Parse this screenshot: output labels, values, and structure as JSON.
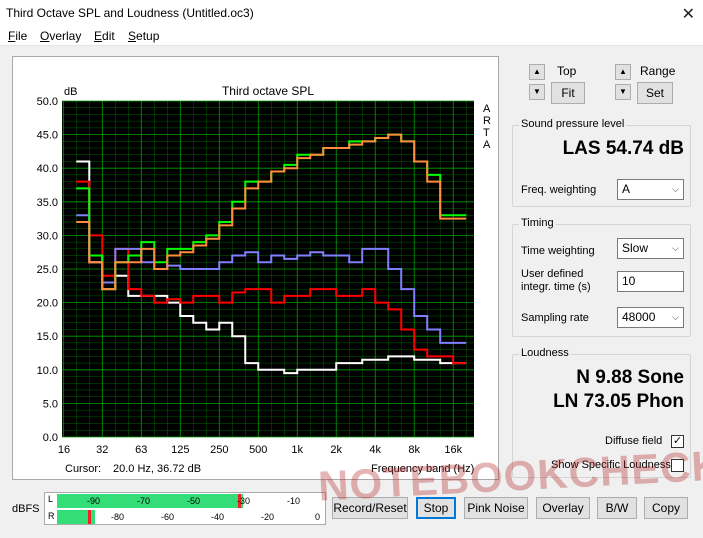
{
  "window": {
    "title": "Third Octave SPL and Loudness (Untitled.oc3)",
    "close_glyph": "✕"
  },
  "menu": [
    {
      "label": "File",
      "u": "F",
      "rest": "ile"
    },
    {
      "label": "Overlay",
      "u": "O",
      "rest": "verlay"
    },
    {
      "label": "Edit",
      "u": "E",
      "rest": "dit"
    },
    {
      "label": "Setup",
      "u": "S",
      "rest": "etup"
    }
  ],
  "graph": {
    "title": "Third octave SPL",
    "y_unit": "dB",
    "arta_letters": [
      "A",
      "R",
      "T",
      "A"
    ],
    "cursor_label": "Cursor:",
    "cursor_value": "20.0 Hz, 36.72 dB",
    "x_axis_label": "Frequency band (Hz)",
    "y_ticks": [
      "50.0",
      "45.0",
      "40.0",
      "35.0",
      "30.0",
      "25.0",
      "20.0",
      "15.0",
      "10.0",
      "5.0",
      "0.0"
    ],
    "x_ticks": [
      "16",
      "32",
      "63",
      "125",
      "250",
      "500",
      "1k",
      "2k",
      "4k",
      "8k",
      "16k"
    ]
  },
  "chart_data": {
    "type": "line",
    "title": "Third octave SPL",
    "xlabel": "Frequency band (Hz)",
    "ylabel": "dB",
    "ylim": [
      0,
      50
    ],
    "x": [
      "20",
      "25",
      "31.5",
      "40",
      "50",
      "63",
      "80",
      "100",
      "125",
      "160",
      "200",
      "250",
      "315",
      "400",
      "500",
      "630",
      "800",
      "1k",
      "1.25k",
      "1.6k",
      "2k",
      "2.5k",
      "3.15k",
      "4k",
      "5k",
      "6.3k",
      "8k",
      "10k",
      "12.5k",
      "16k"
    ],
    "series": [
      {
        "color": "#ffffff",
        "values": [
          41,
          26,
          22,
          24,
          21,
          21,
          21,
          20,
          18,
          17,
          16,
          17,
          15,
          11,
          10,
          10,
          9.5,
          10,
          10,
          10,
          11,
          11,
          11.5,
          11.5,
          12,
          12,
          11.5,
          11.5,
          11,
          11
        ]
      },
      {
        "color": "#ff0000",
        "values": [
          38,
          30,
          24,
          28,
          22,
          21,
          20,
          20.5,
          20,
          21,
          21,
          20,
          21.5,
          22,
          22,
          20,
          21,
          21,
          22,
          22,
          21,
          21,
          22,
          20,
          19,
          16,
          13,
          12,
          12,
          11
        ]
      },
      {
        "color": "#8080ff",
        "values": [
          33,
          27,
          23,
          28,
          28,
          26,
          25,
          25.5,
          25,
          25,
          25,
          26,
          27,
          27.5,
          26,
          27,
          26.5,
          27,
          27.5,
          27,
          27,
          26,
          28,
          28,
          25,
          22,
          18,
          16,
          14,
          14
        ]
      },
      {
        "color": "#00ff00",
        "values": [
          37,
          27,
          22,
          26,
          27,
          29,
          26,
          28,
          28,
          29,
          30,
          32,
          35,
          38,
          38,
          39.5,
          40.5,
          42,
          42,
          43,
          43,
          44,
          44,
          44.5,
          45,
          44,
          41,
          39,
          33,
          33
        ]
      },
      {
        "color": "#ff8c3c",
        "values": [
          32,
          26,
          22,
          26,
          26,
          28,
          25,
          27,
          27.5,
          28.5,
          29.5,
          31.5,
          34,
          37,
          38,
          39.5,
          40,
          41.5,
          42,
          43,
          43,
          43.5,
          44,
          44.5,
          45,
          44,
          41,
          38,
          32.5,
          32.5
        ]
      }
    ]
  },
  "controls": {
    "top_label": "Top",
    "range_label": "Range",
    "fit_label": "Fit",
    "set_label": "Set",
    "up_glyph": "▲",
    "down_glyph": "▼"
  },
  "spl": {
    "group_title": "Sound pressure level",
    "value": "LAS 54.74 dB",
    "freq_weighting_label": "Freq. weighting",
    "freq_weighting_value": "A"
  },
  "timing": {
    "group_title": "Timing",
    "time_weighting_label": "Time weighting",
    "time_weighting_value": "Slow",
    "user_defined_label_1": "User defined",
    "user_defined_label_2": "integr. time (s)",
    "user_defined_value": "10",
    "sampling_rate_label": "Sampling rate",
    "sampling_rate_value": "48000"
  },
  "loudness": {
    "group_title": "Loudness",
    "n_value": "N 9.88 Sone",
    "ln_value": "LN 73.05 Phon",
    "diffuse_field_label": "Diffuse field",
    "diffuse_field_checked": "✓",
    "show_specific_label": "Show Specific Loudness"
  },
  "meter": {
    "label": "dBFS",
    "L": "L",
    "R": "R",
    "top_ticks": [
      "-90",
      "-70",
      "-50",
      "-30",
      "-10"
    ],
    "bottom_ticks": [
      "-80",
      "-60",
      "-40",
      "-20",
      "0"
    ],
    "top_level_fraction": 0.69,
    "bottom_level_fraction": 0.14
  },
  "buttons": {
    "record_reset": "Record/Reset",
    "stop": "Stop",
    "pink_noise": "Pink Noise",
    "overlay": "Overlay",
    "bw": "B/W",
    "copy": "Copy"
  },
  "watermark": "NOTEBOOKCHECK",
  "colors": {
    "plot_bg": "#000000",
    "grid": "#00a000",
    "meter_green": "#33dd77",
    "meter_red": "#ee2222"
  }
}
